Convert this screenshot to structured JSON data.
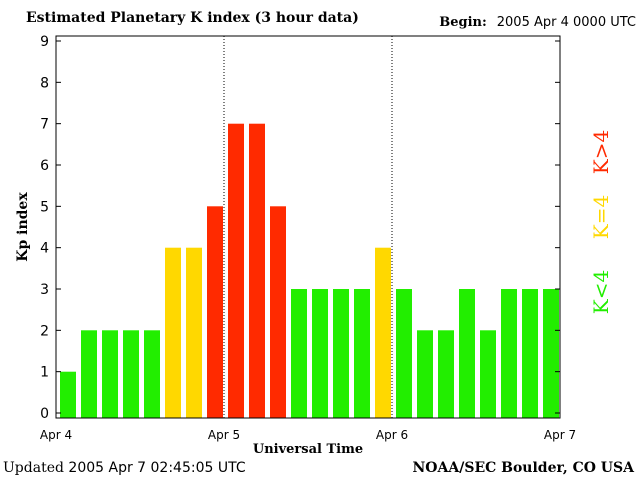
{
  "header": {
    "title": "Estimated Planetary K index (3 hour data)",
    "begin_label": "Begin:",
    "begin_value": "2005 Apr 4 0000 UTC"
  },
  "footer": {
    "updated_label": "Updated",
    "updated_value": "2005 Apr  7 02:45:05 UTC",
    "source": "NOAA/SEC Boulder, CO USA"
  },
  "legend": {
    "low": {
      "label": "K<4",
      "color": "#22ee00"
    },
    "mid": {
      "label": "K=4",
      "color": "#ffd800"
    },
    "high": {
      "label": "K>4",
      "color": "#ff2a00"
    }
  },
  "chart_data": {
    "type": "bar",
    "title": "Estimated Planetary K index (3 hour data)",
    "xlabel": "Universal Time",
    "ylabel": "Kp index",
    "ylim": [
      0,
      9
    ],
    "yticks": [
      "0",
      "1",
      "2",
      "3",
      "4",
      "5",
      "6",
      "7",
      "8",
      "9"
    ],
    "xticks": [
      "Apr 4",
      "Apr 5",
      "Apr 6",
      "Apr 7"
    ],
    "day_dividers": [
      "Apr 5",
      "Apr 6"
    ],
    "values": [
      1,
      2,
      2,
      2,
      2,
      4,
      4,
      5,
      7,
      7,
      5,
      3,
      3,
      3,
      3,
      4,
      3,
      2,
      2,
      3,
      2,
      3,
      3,
      3
    ],
    "colors": {
      "low": "#22ee00",
      "equal": "#ffd800",
      "high": "#ff2a00"
    }
  }
}
